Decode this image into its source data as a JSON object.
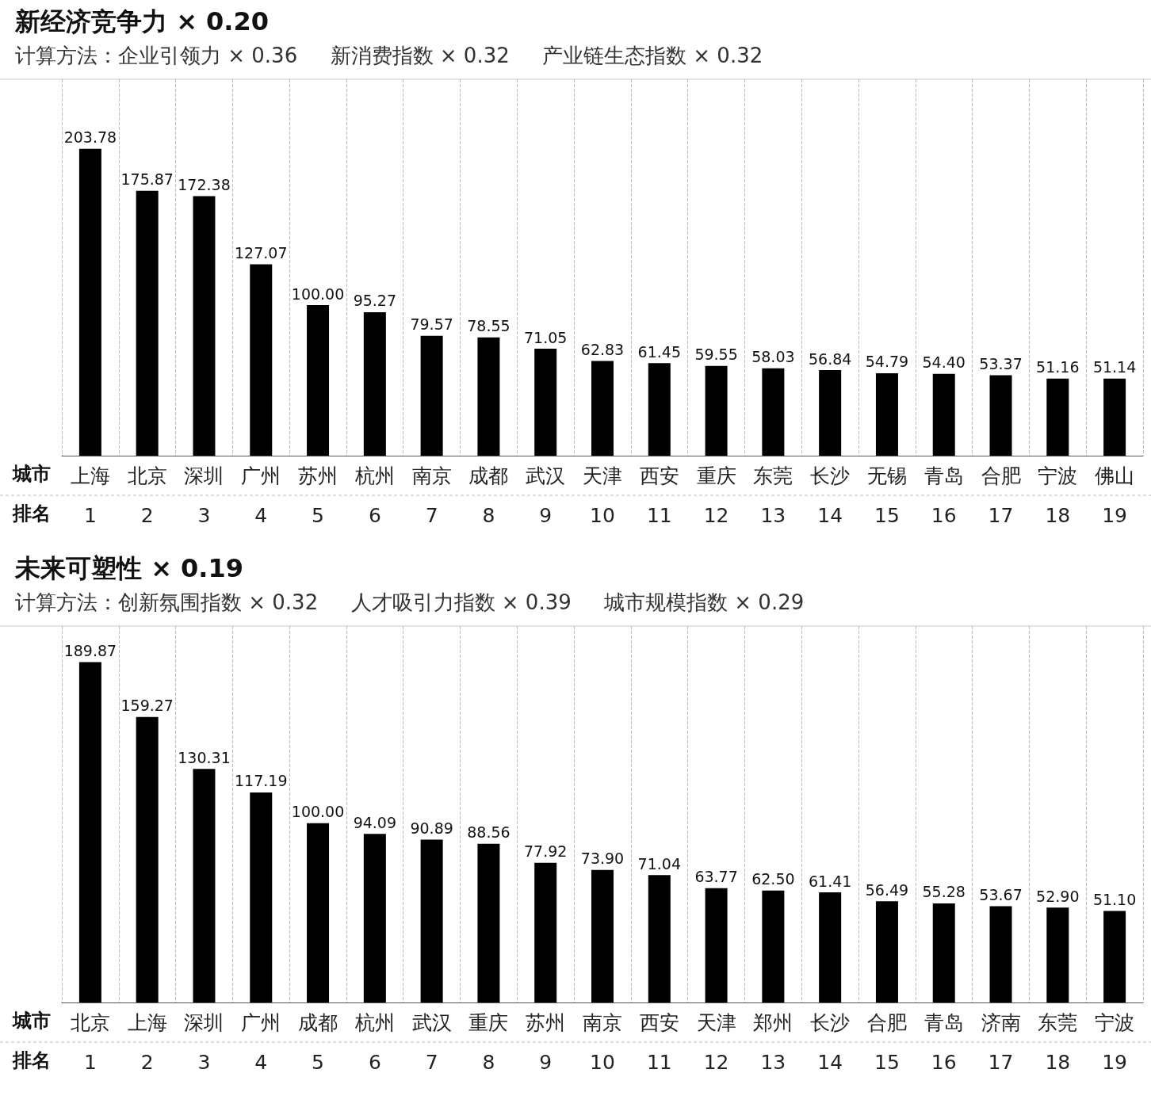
{
  "chart_data": [
    {
      "type": "bar",
      "title": "新经济竞争力 × 0.20",
      "subtitle": "计算方法：企业引领力 × 0.36     新消费指数 × 0.32     产业链生态指数 × 0.32",
      "categories": [
        "上海\n1",
        "北京\n2",
        "深圳\n3",
        "广州\n4",
        "苏州\n5",
        "杭州\n6",
        "南京\n7",
        "成都\n8",
        "武汉\n9",
        "天津\n10",
        "西安\n11",
        "重庆\n12",
        "东莞\n13",
        "长沙\n14",
        "无锡\n15",
        "青岛\n16",
        "合肥\n17",
        "宁波\n18",
        "佛山\n19"
      ],
      "values": [
        203.78,
        175.87,
        172.38,
        127.07,
        100.0,
        95.27,
        79.57,
        78.55,
        71.05,
        62.83,
        61.45,
        59.55,
        58.03,
        56.84,
        54.79,
        54.4,
        53.37,
        51.16,
        51.14
      ],
      "value_labels": [
        "203.78",
        "175.87",
        "172.38",
        "127.07",
        "100.00",
        "95.27",
        "79.57",
        "78.55",
        "71.05",
        "62.83",
        "61.45",
        "59.55",
        "58.03",
        "56.84",
        "54.79",
        "54.40",
        "53.37",
        "51.16",
        "51.14"
      ],
      "color": "#000000",
      "grid": "x",
      "annotations": [
        "城市",
        "排名"
      ]
    },
    {
      "type": "bar",
      "title": "未来可塑性 × 0.19",
      "subtitle": "计算方法：创新氛围指数 × 0.32     人才吸引力指数 × 0.39     城市规模指数 × 0.29",
      "categories": [
        "北京\n1",
        "上海\n2",
        "深圳\n3",
        "广州\n4",
        "成都\n5",
        "杭州\n6",
        "武汉\n7",
        "重庆\n8",
        "苏州\n9",
        "南京\n10",
        "西安\n11",
        "天津\n12",
        "郑州\n13",
        "长沙\n14",
        "合肥\n15",
        "青岛\n16",
        "济南\n17",
        "东莞\n18",
        "宁波\n19"
      ],
      "values": [
        189.87,
        159.27,
        130.31,
        117.19,
        100.0,
        94.09,
        90.89,
        88.56,
        77.92,
        73.9,
        71.04,
        63.77,
        62.5,
        61.41,
        56.49,
        55.28,
        53.67,
        52.9,
        51.1
      ],
      "value_labels": [
        "189.87",
        "159.27",
        "130.31",
        "117.19",
        "100.00",
        "94.09",
        "90.89",
        "88.56",
        "77.92",
        "73.90",
        "71.04",
        "63.77",
        "62.50",
        "61.41",
        "56.49",
        "55.28",
        "53.67",
        "52.90",
        "51.10"
      ],
      "color": "#000000",
      "grid": "x",
      "annotations": [
        "城市",
        "排名"
      ]
    }
  ]
}
